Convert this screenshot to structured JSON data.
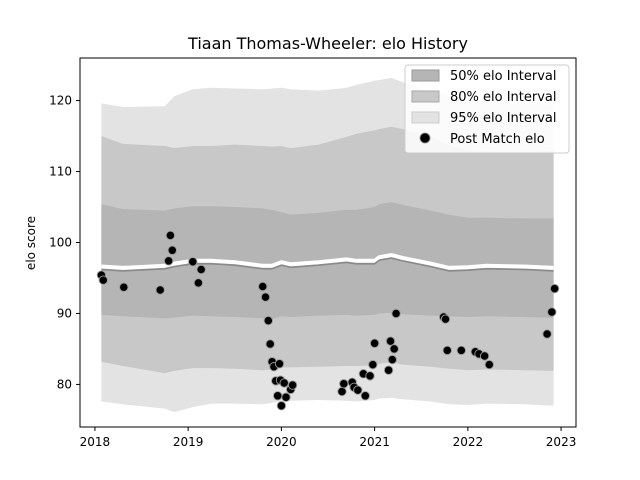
{
  "chart_data": {
    "type": "scatter",
    "title": "Tiaan Thomas-Wheeler: elo History",
    "xlabel": "",
    "ylabel": "elo score",
    "xlim": [
      2017.84,
      2023.16
    ],
    "ylim": [
      74,
      126
    ],
    "x_ticks": [
      2018,
      2019,
      2020,
      2021,
      2022,
      2023
    ],
    "y_ticks": [
      80,
      90,
      100,
      110,
      120
    ],
    "legend_position": "top-right",
    "legend": [
      {
        "label": "50% elo Interval",
        "color": "#b5b5b5",
        "kind": "patch"
      },
      {
        "label": "80% elo Interval",
        "color": "#c8c8c8",
        "kind": "patch"
      },
      {
        "label": "95% elo Interval",
        "color": "#e3e3e3",
        "kind": "patch"
      },
      {
        "label": "Post Match elo",
        "color": "#000000",
        "kind": "marker"
      }
    ],
    "bands": {
      "x": [
        2018.07,
        2018.3,
        2018.75,
        2018.85,
        2019.05,
        2019.25,
        2019.5,
        2019.8,
        2019.9,
        2020.0,
        2020.1,
        2020.4,
        2020.7,
        2020.8,
        2021.0,
        2021.05,
        2021.18,
        2021.3,
        2021.6,
        2021.8,
        2022.0,
        2022.2,
        2022.6,
        2022.92
      ],
      "mean": [
        96.2,
        96.0,
        96.3,
        96.6,
        97.0,
        97.0,
        96.8,
        96.3,
        96.3,
        96.8,
        96.5,
        96.8,
        97.2,
        97.0,
        97.0,
        97.5,
        97.8,
        97.4,
        96.6,
        96.0,
        96.1,
        96.3,
        96.2,
        96.0
      ],
      "lower50": [
        89.8,
        89.6,
        89.3,
        89.4,
        89.7,
        89.6,
        89.5,
        89.3,
        89.2,
        89.6,
        89.5,
        89.7,
        89.8,
        89.7,
        89.8,
        90.0,
        90.1,
        89.9,
        89.7,
        89.6,
        89.5,
        89.6,
        89.5,
        89.4
      ],
      "upper50": [
        105.4,
        104.7,
        104.5,
        104.8,
        105.1,
        105.1,
        105.0,
        104.8,
        104.6,
        104.3,
        103.9,
        104.2,
        104.6,
        104.6,
        105.0,
        105.4,
        105.7,
        105.3,
        104.5,
        103.9,
        103.5,
        103.5,
        103.4,
        103.4
      ],
      "lower80": [
        83.2,
        82.6,
        81.6,
        81.9,
        82.3,
        82.3,
        82.2,
        82.0,
        82.1,
        82.4,
        82.4,
        82.5,
        82.6,
        82.6,
        82.7,
        82.9,
        83.1,
        82.8,
        82.5,
        82.2,
        82.0,
        82.1,
        82.0,
        81.9
      ],
      "upper80": [
        115.0,
        113.9,
        113.6,
        113.3,
        113.6,
        113.6,
        113.8,
        113.6,
        113.5,
        113.6,
        113.3,
        113.8,
        114.9,
        115.3,
        115.8,
        116.0,
        116.3,
        116.0,
        115.0,
        113.7,
        113.0,
        112.9,
        112.8,
        113.0
      ],
      "lower95": [
        77.6,
        77.2,
        76.6,
        76.1,
        76.8,
        77.3,
        77.3,
        77.2,
        77.4,
        77.7,
        77.7,
        77.8,
        77.7,
        77.6,
        77.8,
        78.0,
        78.1,
        77.9,
        77.6,
        77.2,
        77.1,
        77.3,
        77.2,
        77.0
      ],
      "upper95": [
        119.6,
        119.1,
        119.2,
        120.6,
        121.6,
        121.8,
        121.7,
        121.6,
        121.7,
        121.8,
        121.6,
        121.4,
        121.8,
        122.2,
        122.8,
        122.9,
        123.2,
        122.6,
        121.3,
        120.7,
        120.3,
        120.0,
        119.6,
        119.4
      ]
    },
    "points": [
      {
        "x": 2018.07,
        "y": 95.4
      },
      {
        "x": 2018.09,
        "y": 94.7
      },
      {
        "x": 2018.31,
        "y": 93.7
      },
      {
        "x": 2018.7,
        "y": 93.3
      },
      {
        "x": 2018.79,
        "y": 97.4
      },
      {
        "x": 2018.81,
        "y": 101.0
      },
      {
        "x": 2018.83,
        "y": 98.9
      },
      {
        "x": 2019.05,
        "y": 97.3
      },
      {
        "x": 2019.11,
        "y": 94.3
      },
      {
        "x": 2019.14,
        "y": 96.2
      },
      {
        "x": 2019.8,
        "y": 93.8
      },
      {
        "x": 2019.83,
        "y": 92.3
      },
      {
        "x": 2019.86,
        "y": 89.0
      },
      {
        "x": 2019.88,
        "y": 85.7
      },
      {
        "x": 2019.9,
        "y": 83.2
      },
      {
        "x": 2019.92,
        "y": 82.5
      },
      {
        "x": 2019.94,
        "y": 80.5
      },
      {
        "x": 2019.96,
        "y": 78.4
      },
      {
        "x": 2019.98,
        "y": 82.9
      },
      {
        "x": 2019.99,
        "y": 80.6
      },
      {
        "x": 2020.0,
        "y": 77.0
      },
      {
        "x": 2020.03,
        "y": 80.2
      },
      {
        "x": 2020.05,
        "y": 78.2
      },
      {
        "x": 2020.1,
        "y": 79.3
      },
      {
        "x": 2020.12,
        "y": 79.9
      },
      {
        "x": 2020.65,
        "y": 79.0
      },
      {
        "x": 2020.67,
        "y": 80.1
      },
      {
        "x": 2020.76,
        "y": 80.3
      },
      {
        "x": 2020.78,
        "y": 79.6
      },
      {
        "x": 2020.82,
        "y": 79.2
      },
      {
        "x": 2020.88,
        "y": 81.5
      },
      {
        "x": 2020.9,
        "y": 78.4
      },
      {
        "x": 2020.95,
        "y": 81.2
      },
      {
        "x": 2020.98,
        "y": 82.8
      },
      {
        "x": 2021.0,
        "y": 85.8
      },
      {
        "x": 2021.15,
        "y": 82.0
      },
      {
        "x": 2021.17,
        "y": 86.1
      },
      {
        "x": 2021.19,
        "y": 83.5
      },
      {
        "x": 2021.21,
        "y": 85.0
      },
      {
        "x": 2021.23,
        "y": 90.0
      },
      {
        "x": 2021.74,
        "y": 89.5
      },
      {
        "x": 2021.76,
        "y": 89.2
      },
      {
        "x": 2021.78,
        "y": 84.8
      },
      {
        "x": 2021.93,
        "y": 84.8
      },
      {
        "x": 2022.08,
        "y": 84.6
      },
      {
        "x": 2022.12,
        "y": 84.3
      },
      {
        "x": 2022.18,
        "y": 84.0
      },
      {
        "x": 2022.23,
        "y": 82.8
      },
      {
        "x": 2022.85,
        "y": 87.1
      },
      {
        "x": 2022.9,
        "y": 90.2
      },
      {
        "x": 2022.93,
        "y": 93.5
      }
    ]
  }
}
